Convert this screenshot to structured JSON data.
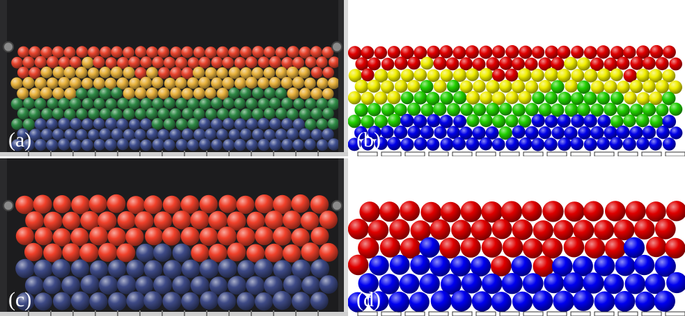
{
  "figure": {
    "panels": [
      {
        "id": "a",
        "label": "(a)",
        "kind": "photo",
        "layers": [
          {
            "color": "#e8452e",
            "name": "red"
          },
          {
            "color": "#e8b23c",
            "name": "orange"
          },
          {
            "color": "#2f8a46",
            "name": "green"
          },
          {
            "color": "#3f4f8f",
            "name": "blue"
          }
        ]
      },
      {
        "id": "b",
        "label": "(b)",
        "kind": "simulation",
        "layers": [
          {
            "color": "#e00000",
            "name": "red"
          },
          {
            "color": "#f0ee00",
            "name": "yellow"
          },
          {
            "color": "#22d000",
            "name": "green"
          },
          {
            "color": "#0000e8",
            "name": "blue"
          }
        ]
      },
      {
        "id": "c",
        "label": "(c)",
        "kind": "photo",
        "layers": [
          {
            "color": "#f0402a",
            "name": "red"
          },
          {
            "color": "#3e4a86",
            "name": "blue"
          }
        ]
      },
      {
        "id": "d",
        "label": "(d)",
        "kind": "simulation",
        "layers": [
          {
            "color": "#e00000",
            "name": "red"
          },
          {
            "color": "#0000f0",
            "name": "blue"
          }
        ]
      }
    ]
  }
}
